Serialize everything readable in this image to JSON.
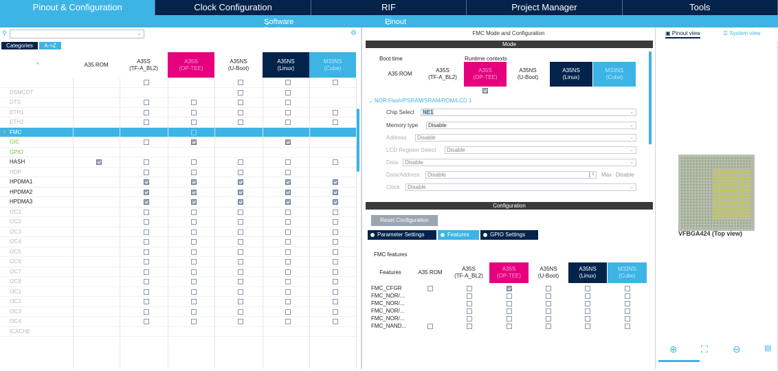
{
  "top_tabs": [
    "Pinout & Configuration",
    "Clock Configuration",
    "RIF",
    "Project Manager",
    "Tools"
  ],
  "subbar": {
    "software_packs": "Software Packs",
    "pinout": "Pinout"
  },
  "left": {
    "categories_btn": "Categories",
    "az_btn": "A->Z",
    "sort_arrow": "^",
    "contexts": [
      {
        "l1": "A35 ROM",
        "l2": ""
      },
      {
        "l1": "A35S",
        "l2": "(TF-A_BL2)"
      },
      {
        "l1": "A35S",
        "l2": "(OP-TEE)"
      },
      {
        "l1": "A35NS",
        "l2": "(U-Boot)"
      },
      {
        "l1": "A35NS",
        "l2": "(Linux)"
      },
      {
        "l1": "M33NS",
        "l2": "(Cube)"
      }
    ],
    "rows": [
      {
        "name": "",
        "c": [
          0,
          1,
          0,
          1,
          1,
          1
        ],
        "s": "dim"
      },
      {
        "name": "DSMCDT",
        "c": [
          0,
          0,
          0,
          1,
          1,
          0
        ],
        "s": "dim"
      },
      {
        "name": "DTS",
        "c": [
          0,
          1,
          1,
          1,
          1,
          0
        ],
        "s": "dim"
      },
      {
        "name": "ETH1",
        "c": [
          0,
          1,
          1,
          1,
          1,
          1
        ],
        "s": "dim"
      },
      {
        "name": "ETH2",
        "c": [
          0,
          1,
          1,
          1,
          1,
          1
        ],
        "s": "dim"
      },
      {
        "name": "FMC",
        "c": [
          0,
          0,
          1,
          0,
          0,
          0
        ],
        "s": "sel"
      },
      {
        "name": "GIC",
        "c": [
          0,
          1,
          2,
          0,
          2,
          0
        ],
        "s": "green"
      },
      {
        "name": "GPIO",
        "c": [
          0,
          0,
          0,
          0,
          0,
          0
        ],
        "s": "green"
      },
      {
        "name": "HASH",
        "c": [
          2,
          1,
          1,
          1,
          1,
          1
        ],
        "s": "norm"
      },
      {
        "name": "HDP",
        "c": [
          0,
          1,
          1,
          1,
          1,
          0
        ],
        "s": "dim"
      },
      {
        "name": "HPDMA1",
        "c": [
          0,
          2,
          2,
          2,
          2,
          2
        ],
        "s": "norm"
      },
      {
        "name": "HPDMA2",
        "c": [
          0,
          2,
          2,
          2,
          2,
          2
        ],
        "s": "norm"
      },
      {
        "name": "HPDMA3",
        "c": [
          0,
          2,
          2,
          2,
          2,
          2
        ],
        "s": "norm"
      },
      {
        "name": "I2C1",
        "c": [
          0,
          1,
          1,
          1,
          1,
          1
        ],
        "s": "dim"
      },
      {
        "name": "I2C2",
        "c": [
          0,
          1,
          1,
          1,
          1,
          1
        ],
        "s": "dim"
      },
      {
        "name": "I2C3",
        "c": [
          0,
          1,
          1,
          1,
          1,
          1
        ],
        "s": "dim"
      },
      {
        "name": "I2C4",
        "c": [
          0,
          1,
          1,
          1,
          1,
          1
        ],
        "s": "dim"
      },
      {
        "name": "I2C5",
        "c": [
          0,
          1,
          1,
          1,
          1,
          1
        ],
        "s": "dim"
      },
      {
        "name": "I2C6",
        "c": [
          0,
          1,
          1,
          1,
          1,
          1
        ],
        "s": "dim"
      },
      {
        "name": "I2C7",
        "c": [
          0,
          1,
          1,
          1,
          1,
          1
        ],
        "s": "dim"
      },
      {
        "name": "I2C8",
        "c": [
          0,
          1,
          1,
          1,
          1,
          1
        ],
        "s": "dim"
      },
      {
        "name": "I3C1",
        "c": [
          0,
          1,
          1,
          1,
          1,
          1
        ],
        "s": "dim"
      },
      {
        "name": "I3C2",
        "c": [
          0,
          1,
          1,
          1,
          1,
          1
        ],
        "s": "dim"
      },
      {
        "name": "I3C3",
        "c": [
          0,
          1,
          1,
          1,
          1,
          1
        ],
        "s": "dim"
      },
      {
        "name": "I3C4",
        "c": [
          0,
          1,
          1,
          1,
          1,
          1
        ],
        "s": "dim"
      },
      {
        "name": "ICACHE",
        "c": [
          0,
          0,
          0,
          0,
          0,
          0
        ],
        "s": "dim"
      }
    ]
  },
  "mid": {
    "title": "FMC Mode and Configuration",
    "mode_bar": "Mode",
    "boot_time": "Boot time",
    "runtime_contexts": "Runtime contexts",
    "nor_header": "NOR Flash/PSRAM/SRAM/ROM/LCD 1",
    "fields": [
      {
        "label": "Chip Select",
        "value": "NE1"
      },
      {
        "label": "Memory type",
        "value": "Disable"
      },
      {
        "label": "Address",
        "value": "Disable"
      },
      {
        "label": "LCD Register Select",
        "value": "Disable"
      },
      {
        "label": "Data",
        "value": "Disable"
      },
      {
        "label": "Data/Address",
        "value": "Disable"
      },
      {
        "label": "Clock",
        "value": "Disable"
      }
    ],
    "max_label": "Max",
    "max_value": "Disable",
    "config_bar": "Configuration",
    "reset_btn": "Reset Configuration",
    "subtabs": [
      "Parameter Settings",
      "Features",
      "GPIO Settings"
    ],
    "features_title": "FMC features",
    "features_col": "Features",
    "feature_rows": [
      {
        "name": "FMC_CFGR",
        "c": [
          1,
          1,
          2,
          1,
          1,
          1
        ]
      },
      {
        "name": "FMC_NOR/...",
        "c": [
          0,
          1,
          1,
          1,
          1,
          1
        ]
      },
      {
        "name": "FMC_NOR/...",
        "c": [
          0,
          1,
          1,
          1,
          1,
          1
        ]
      },
      {
        "name": "FMC_NOR/...",
        "c": [
          0,
          1,
          1,
          1,
          1,
          1
        ]
      },
      {
        "name": "FMC_NOR/...",
        "c": [
          0,
          1,
          1,
          1,
          1,
          1
        ]
      },
      {
        "name": "FMC_NAND...",
        "c": [
          1,
          1,
          1,
          1,
          1,
          1
        ]
      }
    ]
  },
  "right": {
    "pinout_view": "Pinout view",
    "system_view": "System view",
    "package": "VFBGA424 (Top view)"
  },
  "colors": {
    "navy": "#03234b",
    "cyan": "#3cb4e6",
    "pink": "#e6007e"
  }
}
